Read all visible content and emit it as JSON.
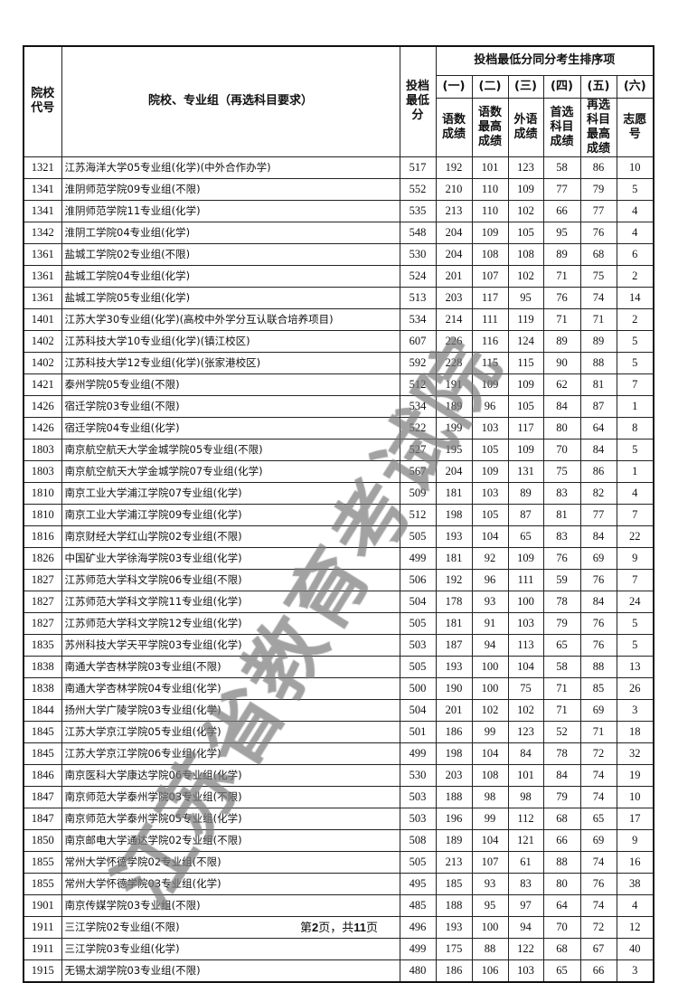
{
  "header": {
    "code": "院校代号",
    "name": "院校、专业组（再选科目要求）",
    "min_score": "投档最低分",
    "sort_title": "投档最低分同分考生排序项",
    "sort_cols": [
      {
        "num": "(一)",
        "label": "语数成绩"
      },
      {
        "num": "(二)",
        "label": "语数最高成绩"
      },
      {
        "num": "(三)",
        "label": "外语成绩"
      },
      {
        "num": "(四)",
        "label": "首选科目成绩"
      },
      {
        "num": "(五)",
        "label": "再选科目最高成绩"
      },
      {
        "num": "(六)",
        "label": "志愿号"
      }
    ]
  },
  "rows": [
    [
      "1321",
      "江苏海洋大学05专业组(化学)(中外合作办学)",
      "517",
      "192",
      "101",
      "123",
      "58",
      "86",
      "10"
    ],
    [
      "1341",
      "淮阴师范学院09专业组(不限)",
      "552",
      "210",
      "110",
      "109",
      "77",
      "79",
      "5"
    ],
    [
      "1341",
      "淮阴师范学院11专业组(化学)",
      "535",
      "213",
      "110",
      "102",
      "66",
      "77",
      "4"
    ],
    [
      "1342",
      "淮阴工学院04专业组(化学)",
      "548",
      "204",
      "109",
      "105",
      "95",
      "76",
      "4"
    ],
    [
      "1361",
      "盐城工学院02专业组(不限)",
      "530",
      "204",
      "108",
      "108",
      "89",
      "68",
      "6"
    ],
    [
      "1361",
      "盐城工学院04专业组(化学)",
      "524",
      "201",
      "107",
      "102",
      "71",
      "75",
      "2"
    ],
    [
      "1361",
      "盐城工学院05专业组(化学)",
      "513",
      "203",
      "117",
      "95",
      "76",
      "74",
      "14"
    ],
    [
      "1401",
      "江苏大学30专业组(化学)(高校中外学分互认联合培养项目)",
      "534",
      "214",
      "111",
      "119",
      "71",
      "71",
      "2"
    ],
    [
      "1402",
      "江苏科技大学10专业组(化学)(镇江校区)",
      "607",
      "226",
      "116",
      "124",
      "89",
      "89",
      "5"
    ],
    [
      "1402",
      "江苏科技大学12专业组(化学)(张家港校区)",
      "592",
      "228",
      "115",
      "115",
      "90",
      "88",
      "5"
    ],
    [
      "1421",
      "泰州学院05专业组(不限)",
      "512",
      "191",
      "109",
      "109",
      "62",
      "81",
      "7"
    ],
    [
      "1426",
      "宿迁学院03专业组(不限)",
      "534",
      "189",
      "96",
      "105",
      "84",
      "87",
      "1"
    ],
    [
      "1426",
      "宿迁学院04专业组(化学)",
      "522",
      "199",
      "103",
      "117",
      "80",
      "64",
      "8"
    ],
    [
      "1803",
      "南京航空航天大学金城学院05专业组(不限)",
      "527",
      "195",
      "105",
      "109",
      "70",
      "84",
      "5"
    ],
    [
      "1803",
      "南京航空航天大学金城学院07专业组(化学)",
      "567",
      "204",
      "109",
      "131",
      "75",
      "86",
      "1"
    ],
    [
      "1810",
      "南京工业大学浦江学院07专业组(化学)",
      "509",
      "181",
      "103",
      "89",
      "83",
      "82",
      "4"
    ],
    [
      "1810",
      "南京工业大学浦江学院09专业组(化学)",
      "512",
      "198",
      "105",
      "87",
      "81",
      "77",
      "7"
    ],
    [
      "1816",
      "南京财经大学红山学院02专业组(不限)",
      "505",
      "193",
      "104",
      "65",
      "83",
      "84",
      "22"
    ],
    [
      "1826",
      "中国矿业大学徐海学院03专业组(化学)",
      "499",
      "181",
      "92",
      "109",
      "76",
      "69",
      "9"
    ],
    [
      "1827",
      "江苏师范大学科文学院06专业组(不限)",
      "506",
      "192",
      "96",
      "111",
      "59",
      "76",
      "7"
    ],
    [
      "1827",
      "江苏师范大学科文学院11专业组(化学)",
      "504",
      "178",
      "93",
      "100",
      "78",
      "84",
      "24"
    ],
    [
      "1827",
      "江苏师范大学科文学院12专业组(化学)",
      "505",
      "181",
      "91",
      "103",
      "79",
      "76",
      "5"
    ],
    [
      "1835",
      "苏州科技大学天平学院03专业组(化学)",
      "503",
      "187",
      "94",
      "113",
      "65",
      "76",
      "5"
    ],
    [
      "1838",
      "南通大学杏林学院03专业组(不限)",
      "505",
      "193",
      "100",
      "104",
      "58",
      "88",
      "13"
    ],
    [
      "1838",
      "南通大学杏林学院04专业组(化学)",
      "500",
      "190",
      "100",
      "75",
      "71",
      "85",
      "26"
    ],
    [
      "1844",
      "扬州大学广陵学院03专业组(化学)",
      "504",
      "201",
      "102",
      "102",
      "71",
      "69",
      "3"
    ],
    [
      "1845",
      "江苏大学京江学院05专业组(化学)",
      "501",
      "186",
      "99",
      "123",
      "52",
      "71",
      "18"
    ],
    [
      "1845",
      "江苏大学京江学院06专业组(化学)",
      "499",
      "198",
      "104",
      "84",
      "78",
      "72",
      "32"
    ],
    [
      "1846",
      "南京医科大学康达学院06专业组(化学)",
      "530",
      "203",
      "108",
      "101",
      "84",
      "74",
      "19"
    ],
    [
      "1847",
      "南京师范大学泰州学院03专业组(不限)",
      "503",
      "188",
      "98",
      "98",
      "79",
      "74",
      "10"
    ],
    [
      "1847",
      "南京师范大学泰州学院05专业组(化学)",
      "503",
      "196",
      "99",
      "112",
      "68",
      "65",
      "17"
    ],
    [
      "1850",
      "南京邮电大学通达学院02专业组(不限)",
      "508",
      "189",
      "104",
      "121",
      "66",
      "69",
      "9"
    ],
    [
      "1855",
      "常州大学怀德学院02专业组(不限)",
      "505",
      "213",
      "107",
      "61",
      "88",
      "74",
      "16"
    ],
    [
      "1855",
      "常州大学怀德学院03专业组(化学)",
      "495",
      "185",
      "93",
      "83",
      "80",
      "76",
      "38"
    ],
    [
      "1901",
      "南京传媒学院03专业组(不限)",
      "485",
      "188",
      "95",
      "97",
      "64",
      "74",
      "4"
    ],
    [
      "1911",
      "三江学院02专业组(不限)",
      "496",
      "193",
      "100",
      "94",
      "70",
      "72",
      "12"
    ],
    [
      "1911",
      "三江学院03专业组(化学)",
      "499",
      "175",
      "88",
      "122",
      "68",
      "67",
      "40"
    ],
    [
      "1915",
      "无锡太湖学院03专业组(不限)",
      "480",
      "186",
      "106",
      "103",
      "65",
      "66",
      "3"
    ]
  ],
  "footer": {
    "prefix": "第",
    "page": "2",
    "mid": "页，共",
    "total": "11",
    "suffix": "页"
  },
  "watermark": {
    "text": "江苏省教育考试院",
    "color": "#7a7a7a"
  }
}
